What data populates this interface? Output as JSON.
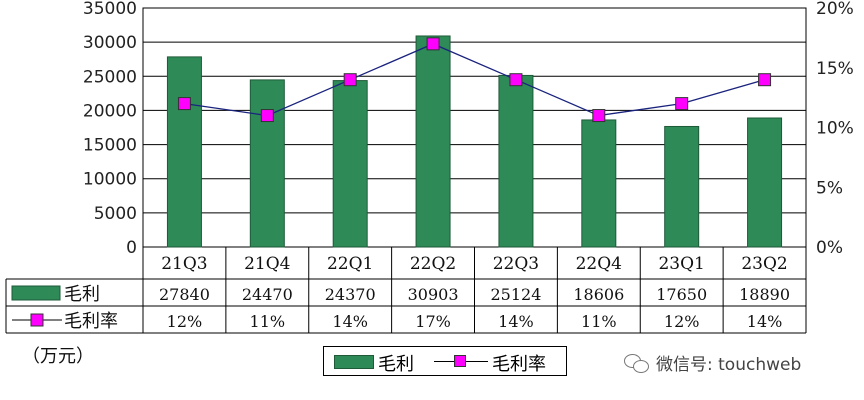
{
  "chart_data": {
    "type": "bar",
    "categories": [
      "21Q3",
      "21Q4",
      "22Q1",
      "22Q2",
      "22Q3",
      "22Q4",
      "23Q1",
      "23Q2"
    ],
    "series": [
      {
        "name": "毛利",
        "type": "bar",
        "axis": "left",
        "values": [
          27840,
          24470,
          24370,
          30903,
          25124,
          18606,
          17650,
          18890
        ]
      },
      {
        "name": "毛利率",
        "type": "line",
        "axis": "right",
        "values": [
          12,
          11,
          14,
          17,
          14,
          11,
          12,
          14
        ],
        "labels": [
          "12%",
          "11%",
          "14%",
          "17%",
          "14%",
          "11%",
          "12%",
          "14%"
        ]
      }
    ],
    "y_left": {
      "ylim": [
        0,
        35000
      ],
      "ticks": [
        "0",
        "5000",
        "10000",
        "15000",
        "20000",
        "25000",
        "30000",
        "35000"
      ]
    },
    "y_right": {
      "ylim": [
        0,
        20
      ],
      "ticks": [
        "0%",
        "5%",
        "10%",
        "15%",
        "20%"
      ]
    },
    "grid": true,
    "data_table": true,
    "legend_position": "bottom-center",
    "unit": "（万元）",
    "colors": {
      "bar": "#2e8b57",
      "bar_edge": "#1e5a38",
      "marker": "#ff00ff",
      "line": "#1a237e"
    }
  },
  "watermark": {
    "text": "微信号: touchweb",
    "icon": "wechat-icon"
  }
}
